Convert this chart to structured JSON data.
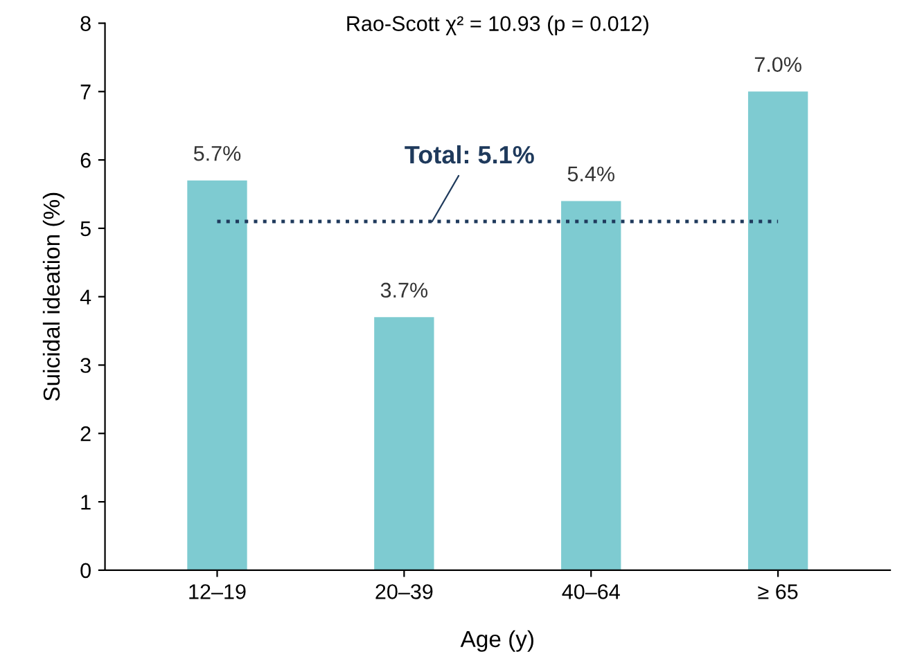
{
  "chart_data": {
    "type": "bar",
    "title": "Rao-Scott χ² = 10.93 (p = 0.012)",
    "xlabel": "Age (y)",
    "ylabel": "Suicidal ideation (%)",
    "categories": [
      "12–19",
      "20–39",
      "40–64",
      "≥ 65"
    ],
    "values": [
      5.7,
      3.7,
      5.4,
      7.0
    ],
    "value_labels": [
      "5.7%",
      "3.7%",
      "5.4%",
      "7.0%"
    ],
    "color": "#7ecbd1",
    "ylim": [
      0,
      8
    ],
    "yticks": [
      0,
      1,
      2,
      3,
      4,
      5,
      6,
      7,
      8
    ],
    "ref_lines": [
      {
        "axis": "y",
        "value": 5.1,
        "label": "Total: 5.1%",
        "color": "#1f3a5c",
        "line_style": "dotted"
      }
    ],
    "grid": false,
    "legend": false
  }
}
